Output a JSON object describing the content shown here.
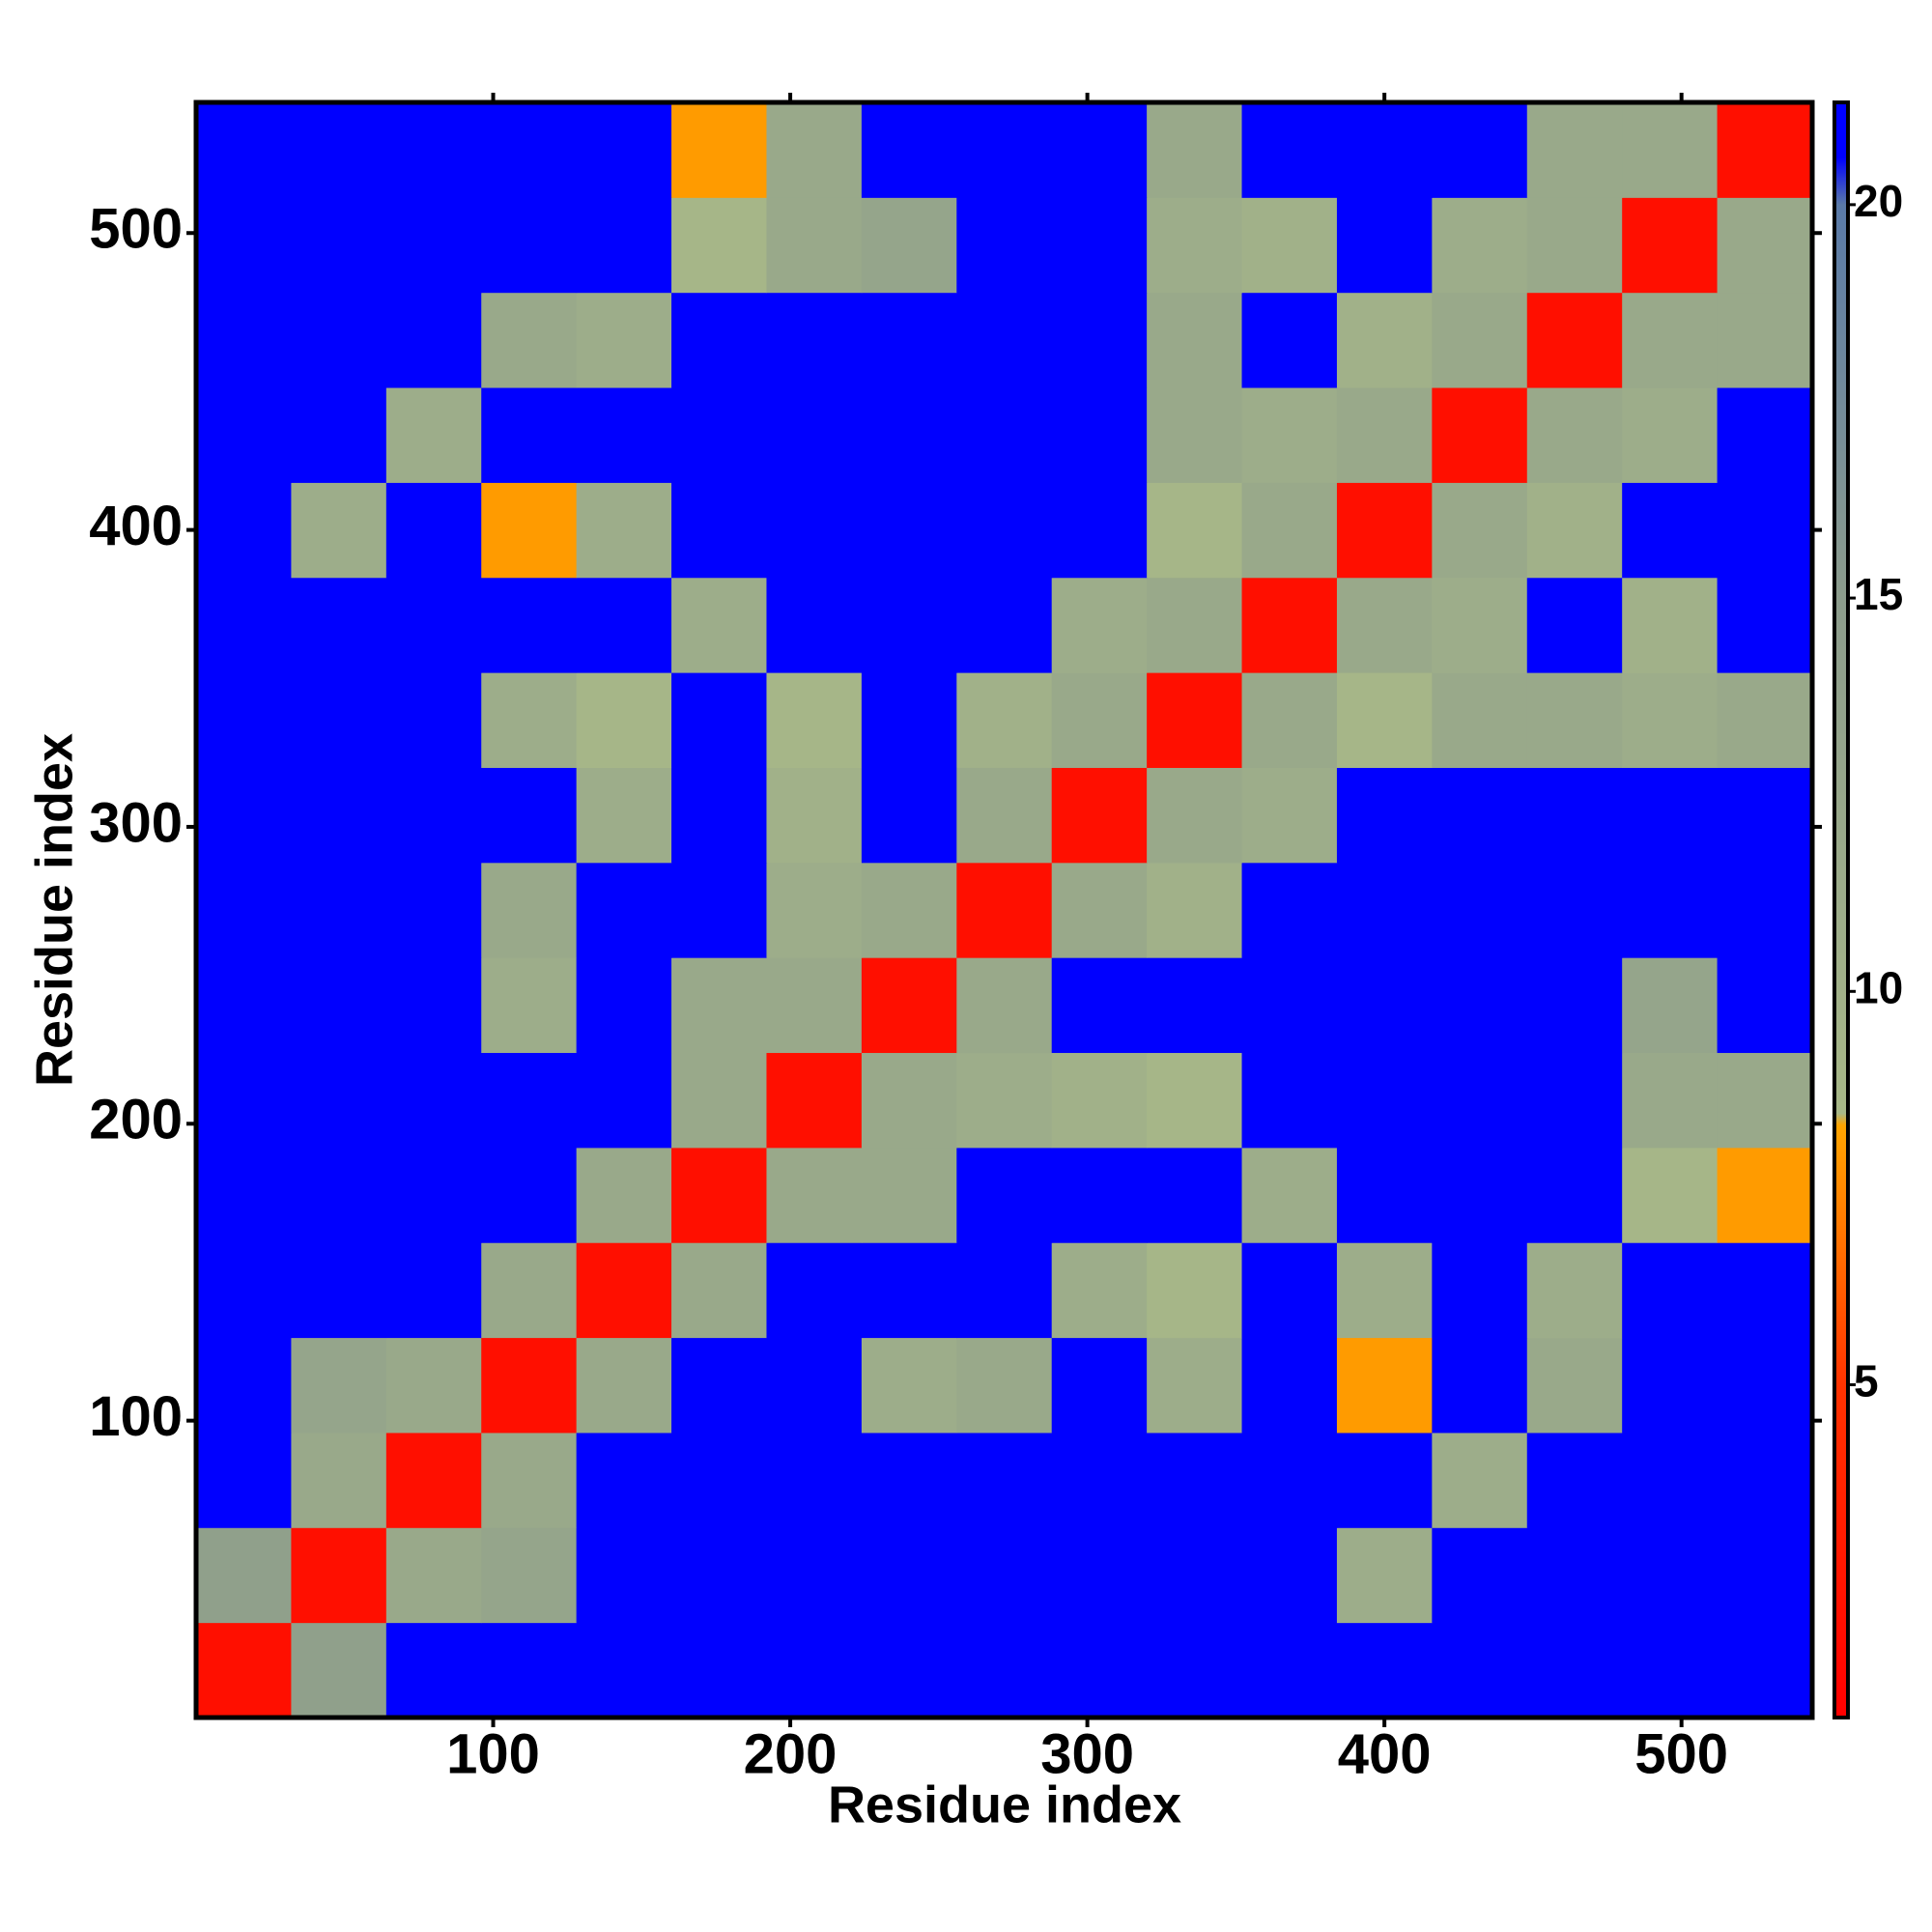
{
  "chart_data": {
    "type": "heatmap",
    "x_label": "Residue index",
    "y_label": "Residue index",
    "bins": [
      0,
      32,
      64,
      96,
      128,
      160,
      192,
      224,
      256,
      288,
      320,
      352,
      384,
      416,
      448,
      480,
      512,
      544
    ],
    "z": [
      [
        2,
        14,
        21,
        21,
        21,
        21,
        21,
        21,
        21,
        21,
        21,
        21,
        21,
        21,
        21,
        21,
        21
      ],
      [
        14,
        2,
        12,
        13,
        21,
        21,
        21,
        21,
        21,
        21,
        21,
        21,
        11,
        21,
        21,
        21,
        21
      ],
      [
        21,
        12,
        2,
        12,
        21,
        21,
        21,
        21,
        21,
        21,
        21,
        21,
        21,
        11,
        21,
        21,
        21
      ],
      [
        21,
        13,
        12,
        2,
        12,
        21,
        21,
        11,
        12,
        21,
        11,
        21,
        8,
        21,
        12,
        21,
        21
      ],
      [
        21,
        21,
        21,
        12,
        2,
        12,
        21,
        21,
        21,
        11,
        9,
        21,
        11,
        21,
        11,
        21,
        21
      ],
      [
        21,
        21,
        21,
        21,
        12,
        2,
        12,
        12,
        21,
        21,
        21,
        11,
        21,
        21,
        21,
        9,
        8
      ],
      [
        21,
        21,
        21,
        21,
        21,
        12,
        2,
        12,
        11,
        10,
        9,
        21,
        21,
        21,
        21,
        12,
        12
      ],
      [
        21,
        21,
        21,
        11,
        21,
        12,
        12,
        2,
        12,
        21,
        21,
        21,
        21,
        21,
        21,
        13,
        21
      ],
      [
        21,
        21,
        21,
        12,
        21,
        21,
        11,
        12,
        2,
        12,
        10,
        21,
        21,
        21,
        21,
        21,
        21
      ],
      [
        21,
        21,
        21,
        21,
        11,
        21,
        10,
        21,
        12,
        2,
        12,
        11,
        21,
        21,
        21,
        21,
        21
      ],
      [
        21,
        21,
        21,
        11,
        9,
        21,
        9,
        21,
        10,
        12,
        2,
        12,
        9,
        12,
        12,
        11,
        12
      ],
      [
        21,
        21,
        21,
        21,
        21,
        11,
        21,
        21,
        21,
        11,
        12,
        2,
        12,
        11,
        21,
        10,
        21
      ],
      [
        21,
        11,
        21,
        8,
        11,
        21,
        21,
        21,
        21,
        21,
        9,
        12,
        2,
        12,
        10,
        21,
        21
      ],
      [
        21,
        21,
        11,
        21,
        21,
        21,
        21,
        21,
        21,
        21,
        12,
        11,
        12,
        2,
        12,
        11,
        21
      ],
      [
        21,
        21,
        21,
        12,
        11,
        21,
        21,
        21,
        21,
        21,
        12,
        21,
        10,
        12,
        2,
        12,
        12
      ],
      [
        21,
        21,
        21,
        21,
        21,
        9,
        12,
        13,
        21,
        21,
        11,
        10,
        21,
        11,
        12,
        2,
        12
      ],
      [
        21,
        21,
        21,
        21,
        21,
        8,
        12,
        21,
        21,
        21,
        12,
        21,
        21,
        21,
        12,
        12,
        2
      ]
    ],
    "xlim": [
      0,
      544
    ],
    "ylim": [
      0,
      544
    ],
    "xticks": [
      100,
      200,
      300,
      400,
      500
    ],
    "yticks": [
      100,
      200,
      300,
      400,
      500
    ],
    "zlim": [
      0.77,
      21.3
    ],
    "zticks": [
      5,
      10,
      15,
      20
    ],
    "colorscale": [
      [
        0.77,
        "#ff0000"
      ],
      [
        5,
        "#ff3300"
      ],
      [
        8.3,
        "#ffa500"
      ],
      [
        8.45,
        "#a8b888"
      ],
      [
        15,
        "#8c9c8c"
      ],
      [
        20,
        "#5a7aa8"
      ],
      [
        20.6,
        "#0000ff"
      ],
      [
        21.3,
        "#0000ff"
      ]
    ]
  }
}
